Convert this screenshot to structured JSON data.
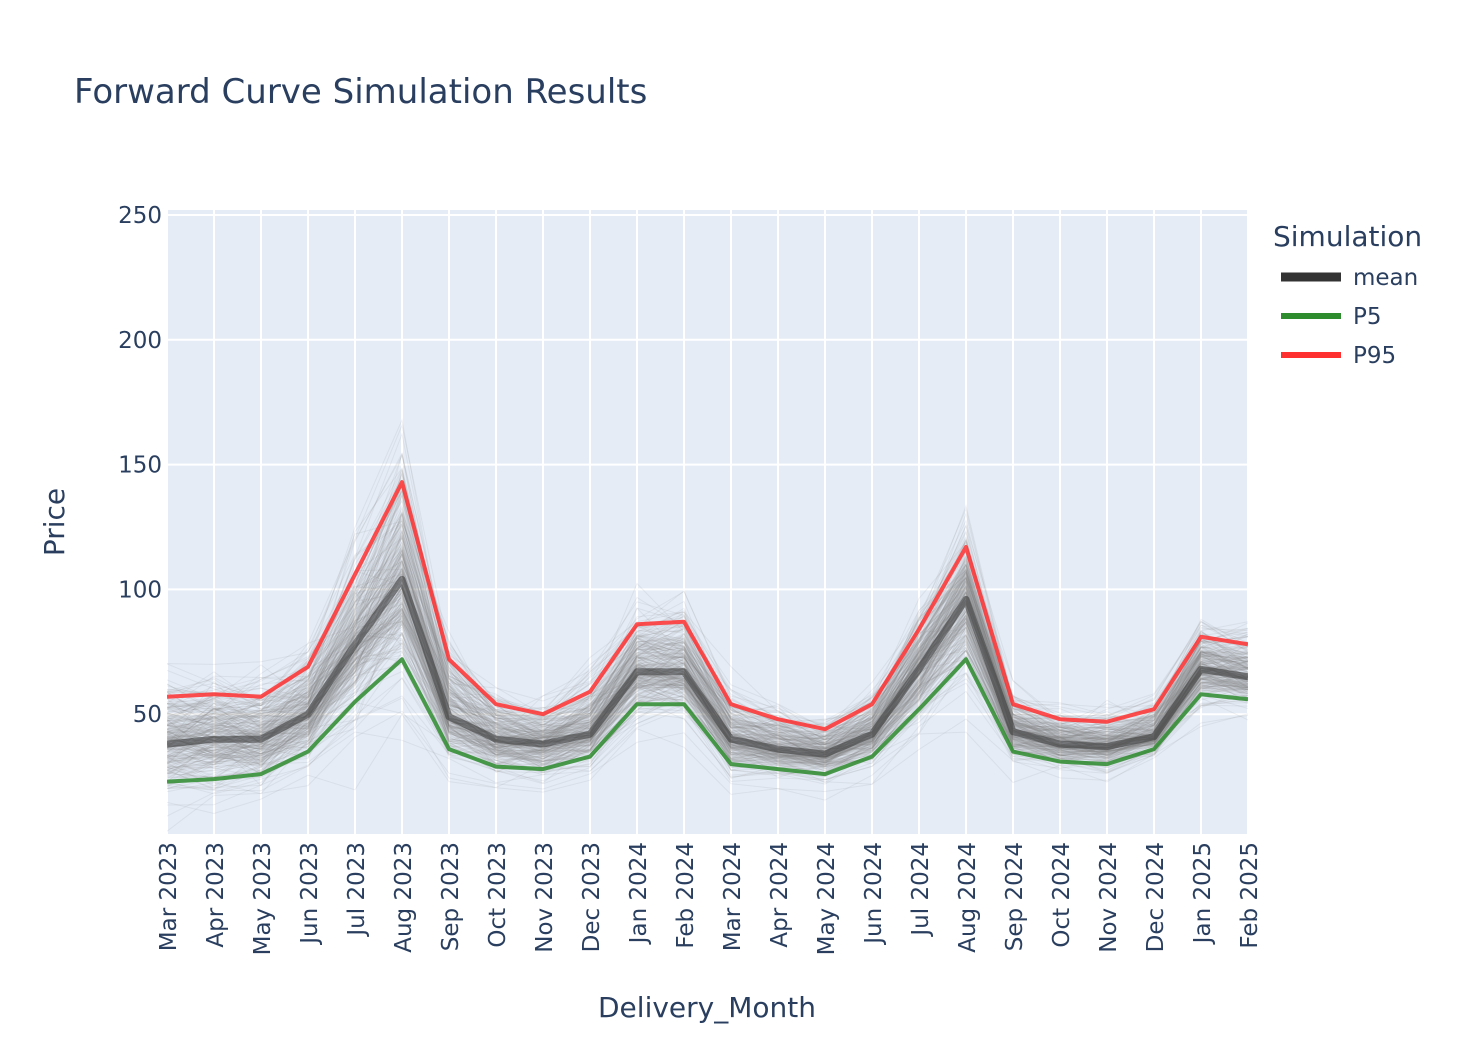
{
  "chart_data": {
    "type": "line",
    "title": "Forward Curve Simulation Results",
    "xlabel": "Delivery_Month",
    "ylabel": "Price",
    "ylim": [
      2,
      252
    ],
    "yticks": [
      50,
      100,
      150,
      200,
      250
    ],
    "grid": true,
    "legend_title": "Simulation",
    "legend_position": "top-right",
    "categories": [
      "Mar 2023",
      "Apr 2023",
      "May 2023",
      "Jun 2023",
      "Jul 2023",
      "Aug 2023",
      "Sep 2023",
      "Oct 2023",
      "Nov 2023",
      "Dec 2023",
      "Jan 2024",
      "Feb 2024",
      "Mar 2024",
      "Apr 2024",
      "May 2024",
      "Jun 2024",
      "Jul 2024",
      "Aug 2024",
      "Sep 2024",
      "Oct 2024",
      "Nov 2024",
      "Dec 2024",
      "Jan 2025",
      "Feb 2025"
    ],
    "series": [
      {
        "name": "mean",
        "color": "#333333",
        "width": 7,
        "values": [
          38,
          40,
          40,
          50,
          78,
          104,
          49,
          40,
          38,
          42,
          67,
          67,
          40,
          36,
          34,
          42,
          68,
          96,
          43,
          38,
          37,
          41,
          68,
          65
        ]
      },
      {
        "name": "P5",
        "color": "#2e8b2e",
        "width": 4,
        "values": [
          23,
          24,
          26,
          35,
          55,
          72,
          36,
          29,
          28,
          33,
          54,
          54,
          30,
          28,
          26,
          33,
          52,
          72,
          35,
          31,
          30,
          36,
          58,
          56
        ]
      },
      {
        "name": "P95",
        "color": "#ff3030",
        "width": 4,
        "values": [
          57,
          58,
          57,
          69,
          106,
          143,
          72,
          54,
          50,
          59,
          86,
          87,
          54,
          48,
          44,
          54,
          84,
          117,
          54,
          48,
          47,
          52,
          81,
          78
        ]
      }
    ],
    "simulation_band": {
      "color": "#808080",
      "paths": 300
    }
  }
}
